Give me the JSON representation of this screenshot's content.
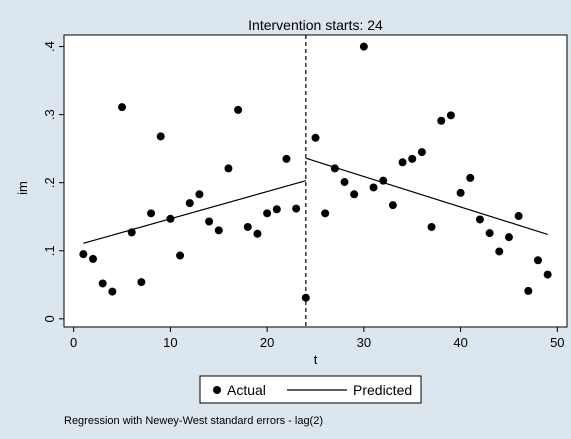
{
  "chart_data": {
    "type": "scatter",
    "title": "Intervention starts: 24",
    "xlabel": "t",
    "ylabel": "im",
    "xlim": [
      -1,
      51
    ],
    "ylim": [
      -0.012,
      0.417
    ],
    "x_ticks": [
      0,
      10,
      20,
      30,
      40,
      50
    ],
    "y_ticks": [
      0,
      0.1,
      0.2,
      0.3,
      0.4
    ],
    "y_tick_labels": [
      "0",
      ".1",
      ".2",
      ".3",
      ".4"
    ],
    "intervention_x": 24,
    "series": [
      {
        "name": "Actual",
        "kind": "points",
        "x": [
          1,
          2,
          3,
          4,
          5,
          6,
          7,
          8,
          9,
          10,
          11,
          12,
          13,
          14,
          15,
          16,
          17,
          18,
          19,
          20,
          21,
          22,
          23,
          24,
          25,
          26,
          27,
          28,
          29,
          30,
          31,
          32,
          33,
          34,
          35,
          36,
          37,
          38,
          39,
          40,
          41,
          42,
          43,
          44,
          45,
          46,
          47,
          48,
          49
        ],
        "y": [
          0.095,
          0.088,
          0.052,
          0.04,
          0.311,
          0.127,
          0.054,
          0.155,
          0.268,
          0.147,
          0.093,
          0.17,
          0.183,
          0.143,
          0.13,
          0.221,
          0.307,
          0.135,
          0.125,
          0.155,
          0.161,
          0.235,
          0.162,
          0.031,
          0.266,
          0.155,
          0.221,
          0.201,
          0.183,
          0.4,
          0.193,
          0.203,
          0.167,
          0.23,
          0.235,
          0.245,
          0.135,
          0.291,
          0.299,
          0.185,
          0.207,
          0.146,
          0.126,
          0.099,
          0.12,
          0.151,
          0.041,
          0.086,
          0.065
        ]
      },
      {
        "name": "Predicted",
        "kind": "line",
        "segments": [
          {
            "x": [
              1,
              24
            ],
            "y": [
              0.111,
              0.203
            ]
          },
          {
            "x": [
              24,
              49
            ],
            "y": [
              0.236,
              0.124
            ]
          }
        ]
      }
    ],
    "legend": {
      "position": "bottom",
      "entries": [
        "Actual",
        "Predicted"
      ]
    },
    "note": "Regression with Newey-West standard errors - lag(2)",
    "grid": false
  }
}
